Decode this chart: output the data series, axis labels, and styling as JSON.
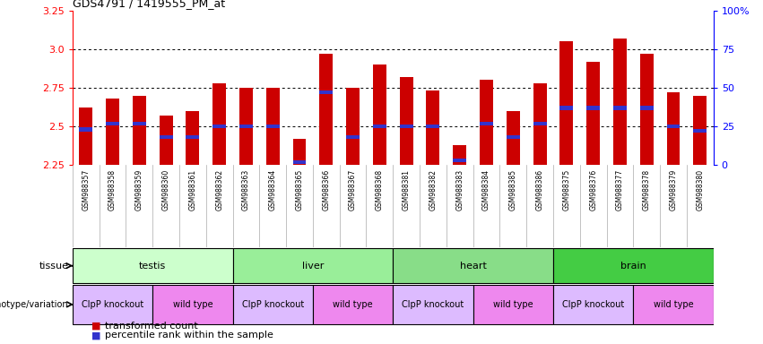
{
  "title": "GDS4791 / 1419555_PM_at",
  "samples": [
    "GSM988357",
    "GSM988358",
    "GSM988359",
    "GSM988360",
    "GSM988361",
    "GSM988362",
    "GSM988363",
    "GSM988364",
    "GSM988365",
    "GSM988366",
    "GSM988367",
    "GSM988368",
    "GSM988381",
    "GSM988382",
    "GSM988383",
    "GSM988384",
    "GSM988385",
    "GSM988386",
    "GSM988375",
    "GSM988376",
    "GSM988377",
    "GSM988378",
    "GSM988379",
    "GSM988380"
  ],
  "bar_values": [
    2.62,
    2.68,
    2.7,
    2.57,
    2.6,
    2.78,
    2.75,
    2.75,
    2.42,
    2.97,
    2.75,
    2.9,
    2.82,
    2.73,
    2.38,
    2.8,
    2.6,
    2.78,
    3.05,
    2.92,
    3.07,
    2.97,
    2.72,
    2.7
  ],
  "blue_marker": [
    2.48,
    2.52,
    2.52,
    2.43,
    2.43,
    2.5,
    2.5,
    2.5,
    2.27,
    2.72,
    2.43,
    2.5,
    2.5,
    2.5,
    2.28,
    2.52,
    2.43,
    2.52,
    2.62,
    2.62,
    2.62,
    2.62,
    2.5,
    2.47
  ],
  "ylim": [
    2.25,
    3.25
  ],
  "yticks_left": [
    2.25,
    2.5,
    2.75,
    3.0,
    3.25
  ],
  "yticks_right": [
    0,
    25,
    50,
    75,
    100
  ],
  "right_tick_labels": [
    "0",
    "25",
    "50",
    "75",
    "100%"
  ],
  "bar_color": "#cc0000",
  "blue_color": "#3333cc",
  "axes_bg": "#ffffff",
  "plot_bg": "#ffffff",
  "sample_bg": "#d8d8d8",
  "tissues": [
    {
      "label": "testis",
      "start": 0,
      "end": 6,
      "color": "#ccffcc"
    },
    {
      "label": "liver",
      "start": 6,
      "end": 12,
      "color": "#99ee99"
    },
    {
      "label": "heart",
      "start": 12,
      "end": 18,
      "color": "#88dd88"
    },
    {
      "label": "brain",
      "start": 18,
      "end": 24,
      "color": "#44cc44"
    }
  ],
  "genotypes": [
    {
      "label": "ClpP knockout",
      "start": 0,
      "end": 3,
      "color": "#ddbbff"
    },
    {
      "label": "wild type",
      "start": 3,
      "end": 6,
      "color": "#ee88ee"
    },
    {
      "label": "ClpP knockout",
      "start": 6,
      "end": 9,
      "color": "#ddbbff"
    },
    {
      "label": "wild type",
      "start": 9,
      "end": 12,
      "color": "#ee88ee"
    },
    {
      "label": "ClpP knockout",
      "start": 12,
      "end": 15,
      "color": "#ddbbff"
    },
    {
      "label": "wild type",
      "start": 15,
      "end": 18,
      "color": "#ee88ee"
    },
    {
      "label": "ClpP knockout",
      "start": 18,
      "end": 21,
      "color": "#ddbbff"
    },
    {
      "label": "wild type",
      "start": 21,
      "end": 24,
      "color": "#ee88ee"
    }
  ],
  "legend_items": [
    {
      "label": "transformed count",
      "color": "#cc0000"
    },
    {
      "label": "percentile rank within the sample",
      "color": "#3333cc"
    }
  ],
  "tissue_label": "tissue",
  "genotype_label": "genotype/variation",
  "bar_width": 0.5,
  "background_color": "#ffffff"
}
